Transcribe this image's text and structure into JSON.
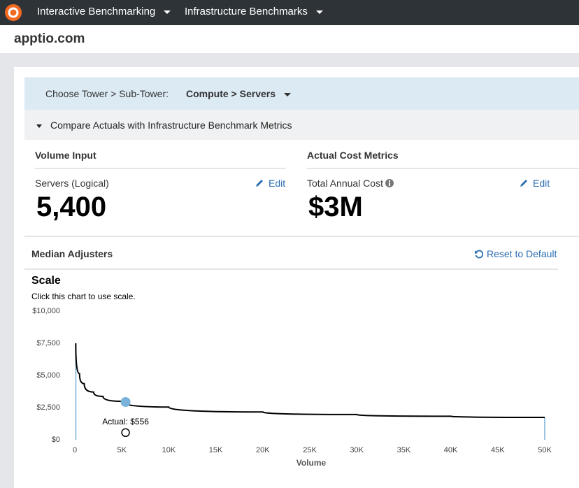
{
  "nav": {
    "items": [
      "Interactive Benchmarking",
      "Infrastructure Benchmarks"
    ]
  },
  "header": {
    "site": "apptio.com"
  },
  "tower": {
    "label": "Choose Tower > Sub-Tower:",
    "value": "Compute > Servers"
  },
  "section": {
    "title": "Compare Actuals with Infrastructure Benchmark Metrics"
  },
  "volume_input": {
    "heading": "Volume Input",
    "label": "Servers (Logical)",
    "edit": "Edit",
    "value": "5,400"
  },
  "cost_metrics": {
    "heading": "Actual Cost Metrics",
    "label": "Total Annual Cost",
    "edit": "Edit",
    "value": "$3M"
  },
  "adjusters": {
    "heading": "Median Adjusters",
    "reset": "Reset to Default"
  },
  "chart_data": {
    "type": "line",
    "title": "Scale",
    "subtitle": "Click this chart to use scale.",
    "x_label": "Volume",
    "xlim": [
      0,
      50000
    ],
    "ylim": [
      0,
      10000
    ],
    "xticks": [
      0,
      {
        "value": 5000,
        "label": "5K"
      },
      {
        "value": 10000,
        "label": "10K"
      },
      {
        "value": 15000,
        "label": "15K"
      },
      {
        "value": 20000,
        "label": "20K"
      },
      {
        "value": 25000,
        "label": "25K"
      },
      {
        "value": 30000,
        "label": "30K"
      },
      {
        "value": 35000,
        "label": "35K"
      },
      {
        "value": 40000,
        "label": "40K"
      },
      {
        "value": 45000,
        "label": "45K"
      },
      {
        "value": 50000,
        "label": "50K"
      }
    ],
    "yticks": [
      {
        "value": 0,
        "label": "$0"
      },
      {
        "value": 2500,
        "label": "$2,500"
      },
      {
        "value": 5000,
        "label": "$5,000"
      },
      {
        "value": 7500,
        "label": "$7,500"
      },
      {
        "value": 10000,
        "label": "$10,000"
      }
    ],
    "curve": {
      "color": "#000000",
      "x": [
        100,
        500,
        1000,
        2000,
        3000,
        5000,
        10000,
        20000,
        30000,
        40000,
        50000
      ],
      "values": [
        7500,
        5140,
        4360,
        3710,
        3370,
        2990,
        2540,
        2160,
        1960,
        1830,
        1740
      ]
    },
    "median_point": {
      "color": "#7ab3d9",
      "x": 5400,
      "y": 2935
    },
    "actual_point": {
      "x": 5400,
      "y": 556,
      "label": "Actual: $556"
    }
  }
}
